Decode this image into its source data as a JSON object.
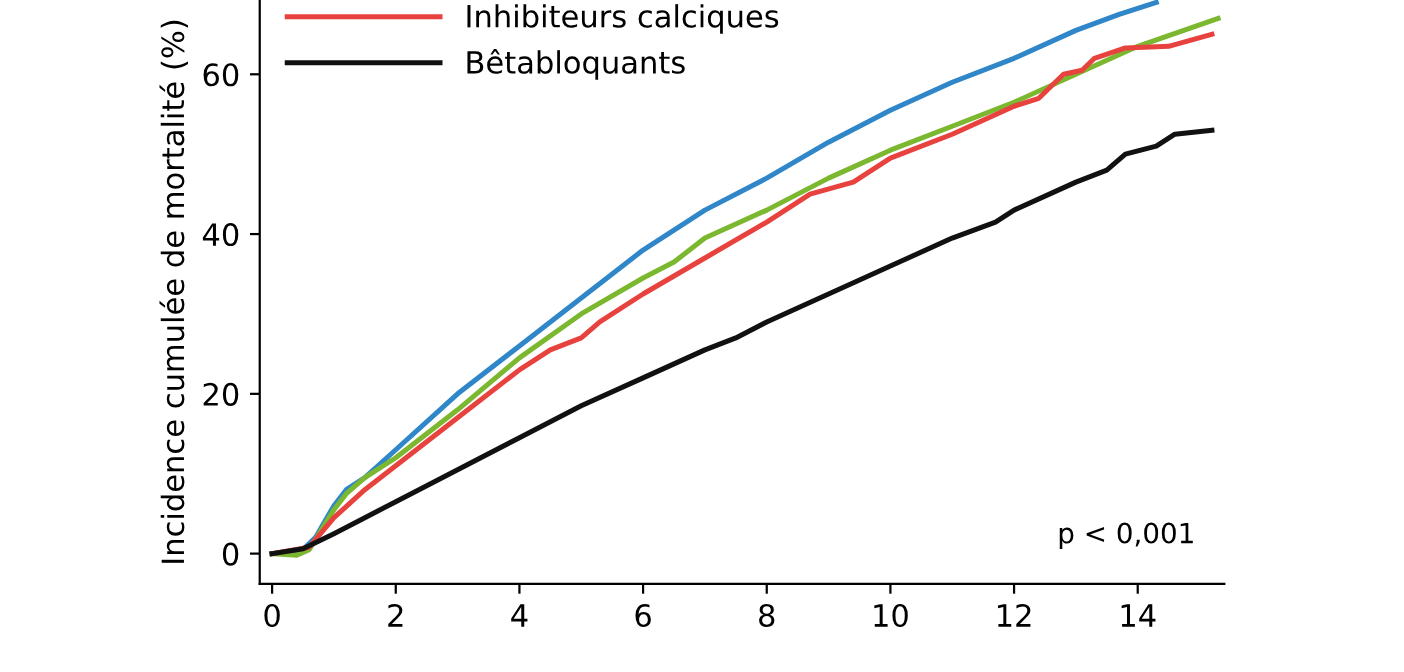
{
  "chart_data": {
    "type": "line",
    "ylabel": "Incidence cumulée de mortalité (%)",
    "annotations": [
      "p < 0,001"
    ],
    "xlim": [
      -0.2,
      15.4
    ],
    "ylim": [
      -3.8,
      69.3
    ],
    "xticks": [
      0,
      2,
      4,
      6,
      8,
      10,
      12,
      14
    ],
    "yticks": [
      0,
      20,
      40,
      60
    ],
    "grid": false,
    "legend": "top left",
    "marker": "none",
    "line_style": "solid",
    "series": [
      {
        "color": "#2f86c8",
        "x": [
          0,
          0.5,
          0.7,
          1,
          1.2,
          1.5,
          2,
          3,
          4,
          5,
          6,
          7,
          8,
          9,
          10,
          11,
          12,
          13,
          13.7,
          14.3
        ],
        "values": [
          0,
          0.5,
          2,
          6,
          8,
          9.5,
          13,
          20,
          26,
          32,
          38,
          43,
          47,
          51.5,
          55.5,
          59,
          62,
          65.5,
          67.5,
          69
        ]
      },
      {
        "color": "#7cb82f",
        "x": [
          0,
          0.4,
          0.6,
          1,
          1.2,
          1.5,
          2,
          3,
          4,
          5,
          6,
          6.5,
          7,
          8,
          9,
          10,
          11,
          12,
          13,
          14,
          15.3
        ],
        "values": [
          0,
          -0.2,
          0.5,
          5.5,
          7.5,
          9.5,
          12,
          18,
          24.5,
          30,
          34.5,
          36.5,
          39.5,
          43,
          47,
          50.5,
          53.5,
          56.5,
          60,
          63.5,
          67
        ]
      },
      {
        "name": "Inhibiteurs calciques",
        "color": "#e8423f",
        "x": [
          0,
          0.6,
          1,
          1.5,
          2,
          3,
          4,
          4.5,
          5,
          5.3,
          6,
          7,
          8,
          8.7,
          9.4,
          10,
          11,
          12,
          12.4,
          12.8,
          13.1,
          13.3,
          13.8,
          14.5,
          15.2
        ],
        "values": [
          0,
          0.8,
          4.5,
          8,
          11,
          17,
          23,
          25.5,
          27,
          29,
          32.5,
          37,
          41.5,
          45,
          46.5,
          49.5,
          52.5,
          56,
          57,
          60,
          60.5,
          62,
          63.3,
          63.5,
          65
        ]
      },
      {
        "name": "Bêtabloquants",
        "color": "#111111",
        "x": [
          0,
          0.5,
          1,
          1.5,
          2,
          3,
          4,
          5,
          6,
          7,
          7.5,
          8,
          9,
          10,
          11,
          11.7,
          12,
          13,
          13.5,
          13.8,
          14.3,
          14.6,
          15.2
        ],
        "values": [
          0,
          0.6,
          2.5,
          4.5,
          6.5,
          10.5,
          14.5,
          18.5,
          22,
          25.5,
          27,
          29,
          32.5,
          36,
          39.5,
          41.5,
          43,
          46.5,
          48,
          50,
          51,
          52.5,
          53
        ]
      }
    ]
  }
}
